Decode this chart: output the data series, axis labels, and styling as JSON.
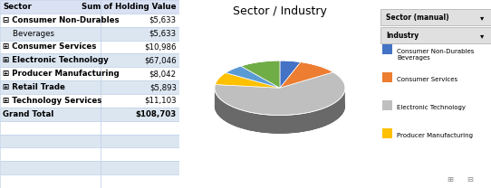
{
  "title": "Sector / Industry",
  "table_headers": [
    "Sector",
    "Sum of Holding Value"
  ],
  "table_rows": [
    [
      "⊟ Consumer Non-Durables",
      "$5,633"
    ],
    [
      "    Beverages",
      "$5,633"
    ],
    [
      "⊞ Consumer Services",
      "$10,986"
    ],
    [
      "⊞ Electronic Technology",
      "$67,046"
    ],
    [
      "⊞ Producer Manufacturing",
      "$8,042"
    ],
    [
      "⊞ Retail Trade",
      "$5,893"
    ],
    [
      "⊞ Technology Services",
      "$11,103"
    ],
    [
      "Grand Total",
      "$108,703"
    ]
  ],
  "pie_values": [
    5633,
    10986,
    67046,
    8042,
    5893,
    11103
  ],
  "pie_colors": [
    "#4472C4",
    "#ED7D31",
    "#BFBFBF",
    "#FFC000",
    "#5B9BD5",
    "#70AD47"
  ],
  "pie_startangle": 90,
  "legend_filter_labels": [
    "Sector (manual)",
    "Industry"
  ],
  "legend_items": [
    {
      "label": "Consumer Non-Durables\nBeverages",
      "color": "#4472C4"
    },
    {
      "label": "Consumer Services",
      "color": "#ED7D31"
    },
    {
      "label": "Electronic Technology",
      "color": "#BFBFBF"
    },
    {
      "label": "Producer Manufacturing",
      "color": "#FFC000"
    }
  ],
  "bg_color": "#FFFFFF",
  "table_header_bg": "#D9E1F2",
  "table_alt_row_bg": "#DCE6F1",
  "table_row_bg": "#FFFFFF",
  "table_bold_rows": [
    0,
    2,
    3,
    4,
    5,
    6,
    7
  ],
  "grid_color": "#B8CCE4",
  "chart_bg": "#FFFFFF",
  "dark_3d_color": "#404040",
  "mid_3d_color": "#808080"
}
